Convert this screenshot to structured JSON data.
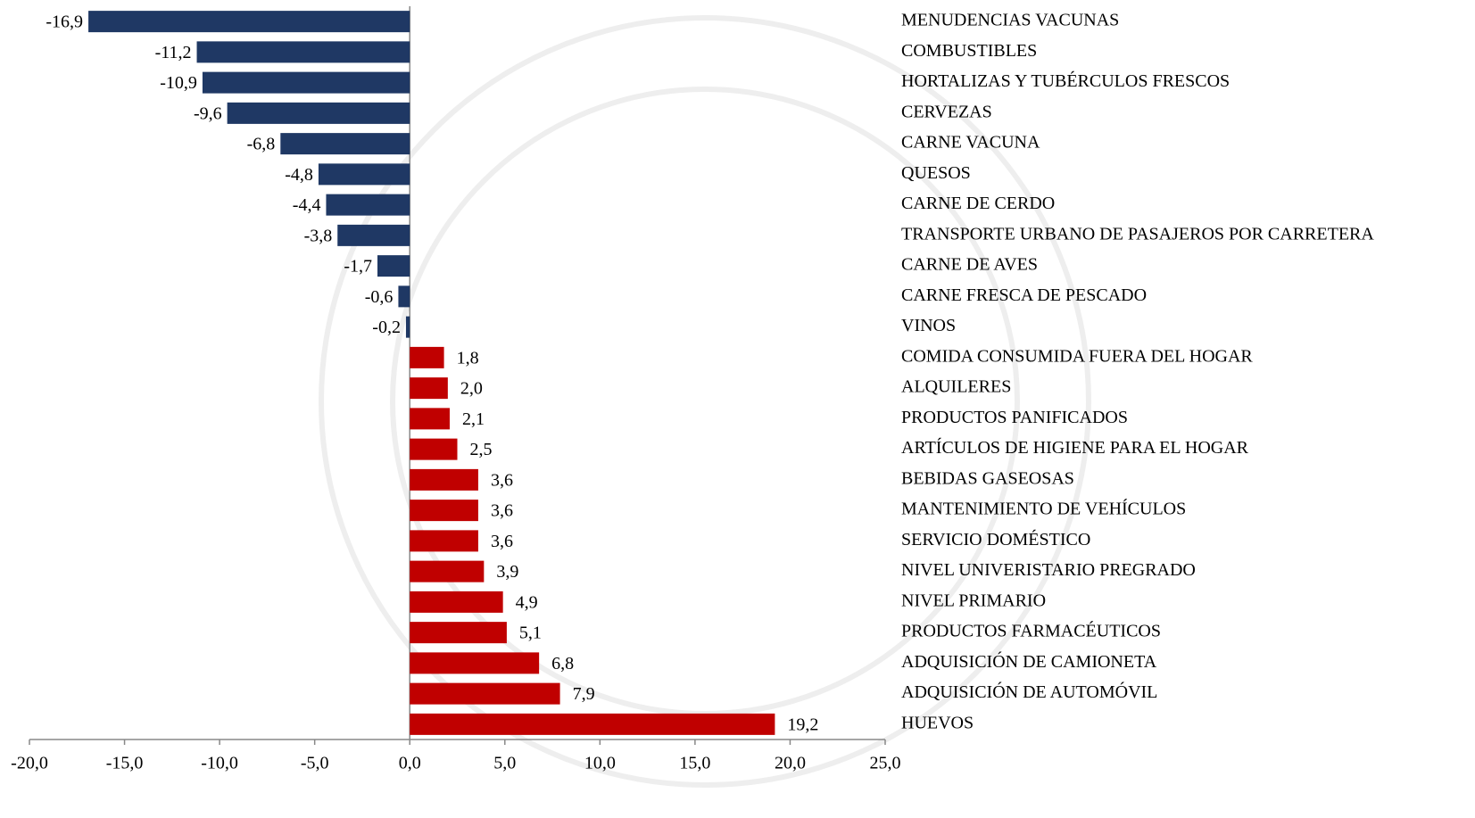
{
  "chart_data": {
    "type": "barh",
    "categories": [
      "MENUDENCIAS VACUNAS",
      "COMBUSTIBLES",
      "HORTALIZAS Y TUBÉRCULOS FRESCOS",
      "CERVEZAS",
      "CARNE VACUNA",
      "QUESOS",
      "CARNE DE CERDO",
      "TRANSPORTE URBANO DE PASAJEROS POR CARRETERA",
      "CARNE DE AVES",
      "CARNE FRESCA DE PESCADO",
      "VINOS",
      "COMIDA CONSUMIDA FUERA DEL HOGAR",
      "ALQUILERES",
      "PRODUCTOS PANIFICADOS",
      "ARTÍCULOS DE HIGIENE PARA EL HOGAR",
      "BEBIDAS GASEOSAS",
      "MANTENIMIENTO DE VEHÍCULOS",
      "SERVICIO DOMÉSTICO",
      "NIVEL UNIVERISTARIO PREGRADO",
      "NIVEL PRIMARIO",
      "PRODUCTOS FARMACÉUTICOS",
      "ADQUISICIÓN DE CAMIONETA",
      "ADQUISICIÓN DE AUTOMÓVIL",
      "HUEVOS"
    ],
    "values": [
      -16.9,
      -11.2,
      -10.9,
      -9.6,
      -6.8,
      -4.8,
      -4.4,
      -3.8,
      -1.7,
      -0.6,
      -0.2,
      1.8,
      2.0,
      2.1,
      2.5,
      3.6,
      3.6,
      3.6,
      3.9,
      4.9,
      5.1,
      6.8,
      7.9,
      19.2
    ],
    "value_labels": [
      "-16,9",
      "-11,2",
      "-10,9",
      "-9,6",
      "-6,8",
      "-4,8",
      "-4,4",
      "-3,8",
      "-1,7",
      "-0,6",
      "-0,2",
      "1,8",
      "2,0",
      "2,1",
      "2,5",
      "3,6",
      "3,6",
      "3,6",
      "3,9",
      "4,9",
      "5,1",
      "6,8",
      "7,9",
      "19,2"
    ],
    "colors": {
      "negative": "#1f3864",
      "positive": "#c00000"
    },
    "xlim": [
      -20,
      25
    ],
    "xticks": [
      {
        "value": -20,
        "label": "-20,0"
      },
      {
        "value": -15,
        "label": "-15,0"
      },
      {
        "value": -10,
        "label": "-10,0"
      },
      {
        "value": -5,
        "label": "-5,0"
      },
      {
        "value": 0,
        "label": "0,0"
      },
      {
        "value": 5,
        "label": "5,0"
      },
      {
        "value": 10,
        "label": "10,0"
      },
      {
        "value": 15,
        "label": "15,0"
      },
      {
        "value": 20,
        "label": "20,0"
      },
      {
        "value": 25,
        "label": "25,0"
      }
    ]
  }
}
